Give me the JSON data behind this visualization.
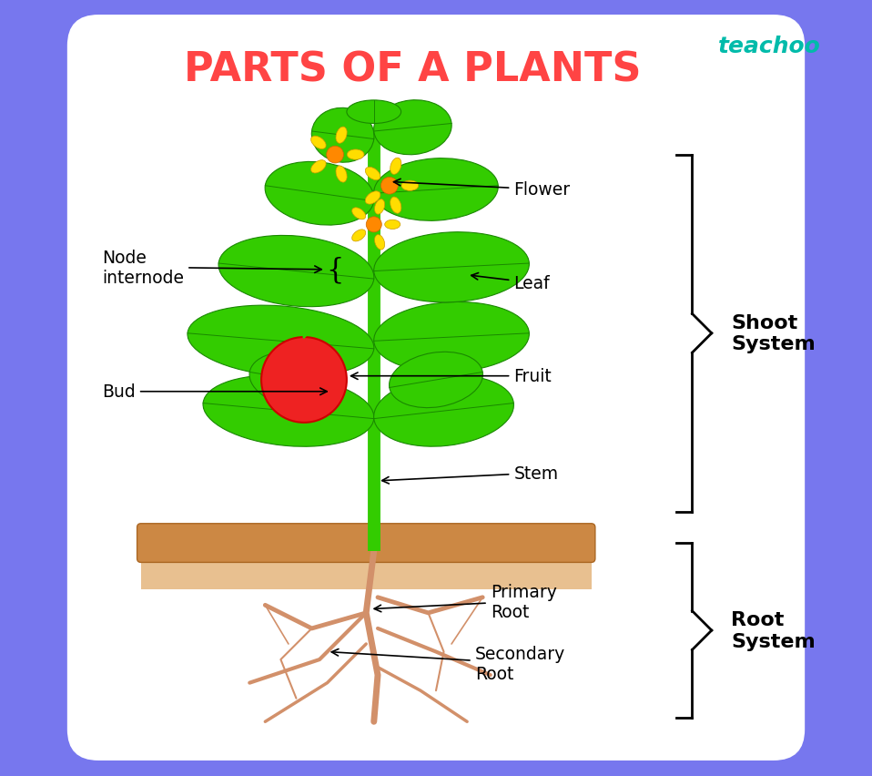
{
  "title": "PARTS OF A PLANTS",
  "title_color": "#FF4444",
  "title_fontsize": 32,
  "background_color": "#FFFFFF",
  "border_color": "#7777EE",
  "teachoo_color": "#00BBAA",
  "teachoo_text": "teachoo",
  "shoot_system_label": "Shoot\nSystem",
  "root_system_label": "Root\nSystem",
  "stem_color": "#33CC00",
  "leaf_color": "#33CC00",
  "leaf_edge_color": "#1A8800",
  "root_color": "#D2906A",
  "fruit_color": "#EE2222",
  "flower_color": "#FFDD00",
  "flower_center_color": "#FF8800",
  "soil_color": "#CC8844",
  "ground_color": "#E8C090",
  "label_fontsize": 13.5,
  "label_color": "black",
  "brace_color": "black",
  "brace_lw": 2.0,
  "system_label_fontsize": 16
}
